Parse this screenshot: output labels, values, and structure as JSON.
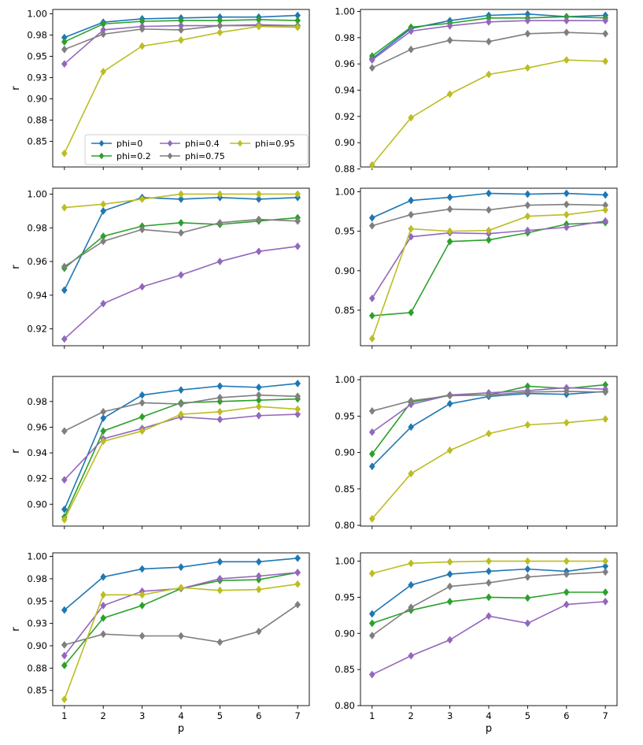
{
  "colors": {
    "phi=0": "#1f77b4",
    "phi=0.2": "#2ca02c",
    "phi=0.4": "#9467bd",
    "phi=0.75": "#7f7f7f",
    "phi=0.95": "#bcbd22"
  },
  "chart_data": [
    {
      "type": "line",
      "xlabel": "",
      "ylabel": "r",
      "x": [
        1,
        2,
        3,
        4,
        5,
        6,
        7
      ],
      "xlim": [
        0.7,
        7.3
      ],
      "ylim": [
        0.82,
        1.005
      ],
      "yticks": [
        0.85,
        0.875,
        0.9,
        0.925,
        0.95,
        0.975,
        1.0
      ],
      "yticklabels": [
        "0.85",
        "0.88",
        "0.90",
        "0.93",
        "0.95",
        "0.98",
        "1.00"
      ],
      "xtick_labels_shown": false,
      "legend": {
        "placement": "lower-center",
        "ncol": 3
      },
      "series": [
        {
          "name": "phi=0",
          "values": [
            0.972,
            0.99,
            0.994,
            0.995,
            0.996,
            0.996,
            0.998
          ]
        },
        {
          "name": "phi=0.2",
          "values": [
            0.967,
            0.988,
            0.991,
            0.992,
            0.992,
            0.993,
            0.992
          ]
        },
        {
          "name": "phi=0.4",
          "values": [
            0.941,
            0.981,
            0.985,
            0.986,
            0.986,
            0.987,
            0.986
          ]
        },
        {
          "name": "phi=0.75",
          "values": [
            0.958,
            0.976,
            0.982,
            0.981,
            0.986,
            0.986,
            0.986
          ]
        },
        {
          "name": "phi=0.95",
          "values": [
            0.836,
            0.932,
            0.962,
            0.969,
            0.978,
            0.985,
            0.984
          ]
        }
      ]
    },
    {
      "type": "line",
      "xlabel": "",
      "ylabel": "",
      "x": [
        1,
        2,
        3,
        4,
        5,
        6,
        7
      ],
      "xlim": [
        0.7,
        7.3
      ],
      "ylim": [
        0.8815,
        1.0015
      ],
      "yticks": [
        0.88,
        0.9,
        0.92,
        0.94,
        0.96,
        0.98,
        1.0
      ],
      "yticklabels": [
        "0.88",
        "0.90",
        "0.92",
        "0.94",
        "0.96",
        "0.98",
        "1.00"
      ],
      "xtick_labels_shown": false,
      "series": [
        {
          "name": "phi=0",
          "values": [
            0.964,
            0.987,
            0.993,
            0.997,
            0.998,
            0.996,
            0.997
          ]
        },
        {
          "name": "phi=0.2",
          "values": [
            0.966,
            0.988,
            0.991,
            0.995,
            0.995,
            0.996,
            0.995
          ]
        },
        {
          "name": "phi=0.4",
          "values": [
            0.963,
            0.985,
            0.989,
            0.992,
            0.993,
            0.993,
            0.993
          ]
        },
        {
          "name": "phi=0.75",
          "values": [
            0.957,
            0.971,
            0.978,
            0.977,
            0.983,
            0.984,
            0.983
          ]
        },
        {
          "name": "phi=0.95",
          "values": [
            0.883,
            0.919,
            0.937,
            0.952,
            0.957,
            0.963,
            0.962
          ]
        }
      ]
    },
    {
      "type": "line",
      "xlabel": "",
      "ylabel": "r",
      "x": [
        1,
        2,
        3,
        4,
        5,
        6,
        7
      ],
      "xlim": [
        0.7,
        7.3
      ],
      "ylim": [
        0.91,
        1.0035
      ],
      "yticks": [
        0.92,
        0.94,
        0.96,
        0.98,
        1.0
      ],
      "yticklabels": [
        "0.92",
        "0.94",
        "0.96",
        "0.98",
        "1.00"
      ],
      "xtick_labels_shown": false,
      "series": [
        {
          "name": "phi=0",
          "values": [
            0.943,
            0.99,
            0.998,
            0.997,
            0.998,
            0.997,
            0.998
          ]
        },
        {
          "name": "phi=0.2",
          "values": [
            0.956,
            0.975,
            0.981,
            0.983,
            0.982,
            0.984,
            0.986
          ]
        },
        {
          "name": "phi=0.4",
          "values": [
            0.914,
            0.935,
            0.945,
            0.952,
            0.96,
            0.966,
            0.969
          ]
        },
        {
          "name": "phi=0.75",
          "values": [
            0.957,
            0.972,
            0.979,
            0.977,
            0.983,
            0.985,
            0.984
          ]
        },
        {
          "name": "phi=0.95",
          "values": [
            0.992,
            0.994,
            0.997,
            1.0,
            1.0,
            1.0,
            1.0
          ]
        }
      ]
    },
    {
      "type": "line",
      "xlabel": "",
      "ylabel": "",
      "x": [
        1,
        2,
        3,
        4,
        5,
        6,
        7
      ],
      "xlim": [
        0.7,
        7.3
      ],
      "ylim": [
        0.805,
        1.0045
      ],
      "yticks": [
        0.85,
        0.9,
        0.95,
        1.0
      ],
      "yticklabels": [
        "0.85",
        "0.90",
        "0.95",
        "1.00"
      ],
      "xtick_labels_shown": false,
      "series": [
        {
          "name": "phi=0",
          "values": [
            0.967,
            0.989,
            0.993,
            0.998,
            0.997,
            0.998,
            0.996
          ]
        },
        {
          "name": "phi=0.2",
          "values": [
            0.843,
            0.847,
            0.937,
            0.939,
            0.948,
            0.959,
            0.961
          ]
        },
        {
          "name": "phi=0.4",
          "values": [
            0.865,
            0.943,
            0.948,
            0.947,
            0.951,
            0.955,
            0.963
          ]
        },
        {
          "name": "phi=0.75",
          "values": [
            0.957,
            0.971,
            0.978,
            0.977,
            0.983,
            0.984,
            0.983
          ]
        },
        {
          "name": "phi=0.95",
          "values": [
            0.814,
            0.953,
            0.95,
            0.951,
            0.969,
            0.971,
            0.977
          ]
        }
      ]
    },
    {
      "type": "line",
      "xlabel": "",
      "ylabel": "r",
      "x": [
        1,
        2,
        3,
        4,
        5,
        6,
        7
      ],
      "xlim": [
        0.7,
        7.3
      ],
      "ylim": [
        0.883,
        0.9995
      ],
      "yticks": [
        0.9,
        0.92,
        0.94,
        0.96,
        0.98
      ],
      "yticklabels": [
        "0.90",
        "0.92",
        "0.94",
        "0.96",
        "0.98"
      ],
      "xtick_labels_shown": false,
      "series": [
        {
          "name": "phi=0",
          "values": [
            0.896,
            0.967,
            0.985,
            0.989,
            0.992,
            0.991,
            0.994
          ]
        },
        {
          "name": "phi=0.2",
          "values": [
            0.89,
            0.957,
            0.968,
            0.979,
            0.98,
            0.981,
            0.982
          ]
        },
        {
          "name": "phi=0.4",
          "values": [
            0.919,
            0.951,
            0.959,
            0.968,
            0.966,
            0.969,
            0.97
          ]
        },
        {
          "name": "phi=0.75",
          "values": [
            0.957,
            0.972,
            0.979,
            0.978,
            0.983,
            0.985,
            0.984
          ]
        },
        {
          "name": "phi=0.95",
          "values": [
            0.888,
            0.949,
            0.957,
            0.97,
            0.972,
            0.976,
            0.974
          ]
        }
      ]
    },
    {
      "type": "line",
      "xlabel": "",
      "ylabel": "",
      "x": [
        1,
        2,
        3,
        4,
        5,
        6,
        7
      ],
      "xlim": [
        0.7,
        7.3
      ],
      "ylim": [
        0.799,
        1.0045
      ],
      "yticks": [
        0.8,
        0.85,
        0.9,
        0.95,
        1.0
      ],
      "yticklabels": [
        "0.80",
        "0.85",
        "0.90",
        "0.95",
        "1.00"
      ],
      "xtick_labels_shown": false,
      "series": [
        {
          "name": "phi=0",
          "values": [
            0.881,
            0.935,
            0.967,
            0.977,
            0.981,
            0.98,
            0.984
          ]
        },
        {
          "name": "phi=0.2",
          "values": [
            0.898,
            0.969,
            0.979,
            0.979,
            0.991,
            0.988,
            0.993
          ]
        },
        {
          "name": "phi=0.4",
          "values": [
            0.928,
            0.966,
            0.979,
            0.982,
            0.985,
            0.989,
            0.987
          ]
        },
        {
          "name": "phi=0.75",
          "values": [
            0.957,
            0.971,
            0.978,
            0.979,
            0.983,
            0.984,
            0.983
          ]
        },
        {
          "name": "phi=0.95",
          "values": [
            0.809,
            0.871,
            0.903,
            0.926,
            0.938,
            0.941,
            0.946
          ]
        }
      ]
    },
    {
      "type": "line",
      "xlabel": "p",
      "ylabel": "r",
      "x": [
        1,
        2,
        3,
        4,
        5,
        6,
        7
      ],
      "xlim": [
        0.7,
        7.3
      ],
      "ylim": [
        0.833,
        1.004
      ],
      "yticks": [
        0.85,
        0.875,
        0.9,
        0.925,
        0.95,
        0.975,
        1.0
      ],
      "yticklabels": [
        "0.85",
        "0.88",
        "0.90",
        "0.93",
        "0.95",
        "0.98",
        "1.00"
      ],
      "xticklabels": [
        "1",
        "2",
        "3",
        "4",
        "5",
        "6",
        "7"
      ],
      "xtick_labels_shown": true,
      "series": [
        {
          "name": "phi=0",
          "values": [
            0.94,
            0.977,
            0.986,
            0.988,
            0.994,
            0.994,
            0.998
          ]
        },
        {
          "name": "phi=0.2",
          "values": [
            0.878,
            0.931,
            0.945,
            0.964,
            0.973,
            0.974,
            0.982
          ]
        },
        {
          "name": "phi=0.4",
          "values": [
            0.889,
            0.945,
            0.961,
            0.964,
            0.975,
            0.978,
            0.982
          ]
        },
        {
          "name": "phi=0.75",
          "values": [
            0.901,
            0.913,
            0.911,
            0.911,
            0.904,
            0.916,
            0.946
          ]
        },
        {
          "name": "phi=0.95",
          "values": [
            0.84,
            0.957,
            0.957,
            0.965,
            0.962,
            0.963,
            0.969
          ]
        }
      ]
    },
    {
      "type": "line",
      "xlabel": "p",
      "ylabel": "",
      "x": [
        1,
        2,
        3,
        4,
        5,
        6,
        7
      ],
      "xlim": [
        0.7,
        7.3
      ],
      "ylim": [
        0.8,
        1.0115
      ],
      "yticks": [
        0.8,
        0.85,
        0.9,
        0.95,
        1.0
      ],
      "yticklabels": [
        "0.80",
        "0.85",
        "0.90",
        "0.95",
        "1.00"
      ],
      "xticklabels": [
        "1",
        "2",
        "3",
        "4",
        "5",
        "6",
        "7"
      ],
      "xtick_labels_shown": true,
      "series": [
        {
          "name": "phi=0",
          "values": [
            0.927,
            0.967,
            0.982,
            0.986,
            0.989,
            0.986,
            0.993
          ]
        },
        {
          "name": "phi=0.2",
          "values": [
            0.914,
            0.932,
            0.944,
            0.95,
            0.949,
            0.957,
            0.957
          ]
        },
        {
          "name": "phi=0.4",
          "values": [
            0.843,
            0.869,
            0.891,
            0.924,
            0.914,
            0.94,
            0.944
          ]
        },
        {
          "name": "phi=0.75",
          "values": [
            0.897,
            0.936,
            0.965,
            0.97,
            0.978,
            0.982,
            0.985
          ]
        },
        {
          "name": "phi=0.95",
          "values": [
            0.983,
            0.997,
            0.999,
            1.0,
            1.0,
            1.0,
            1.0
          ]
        }
      ]
    }
  ]
}
